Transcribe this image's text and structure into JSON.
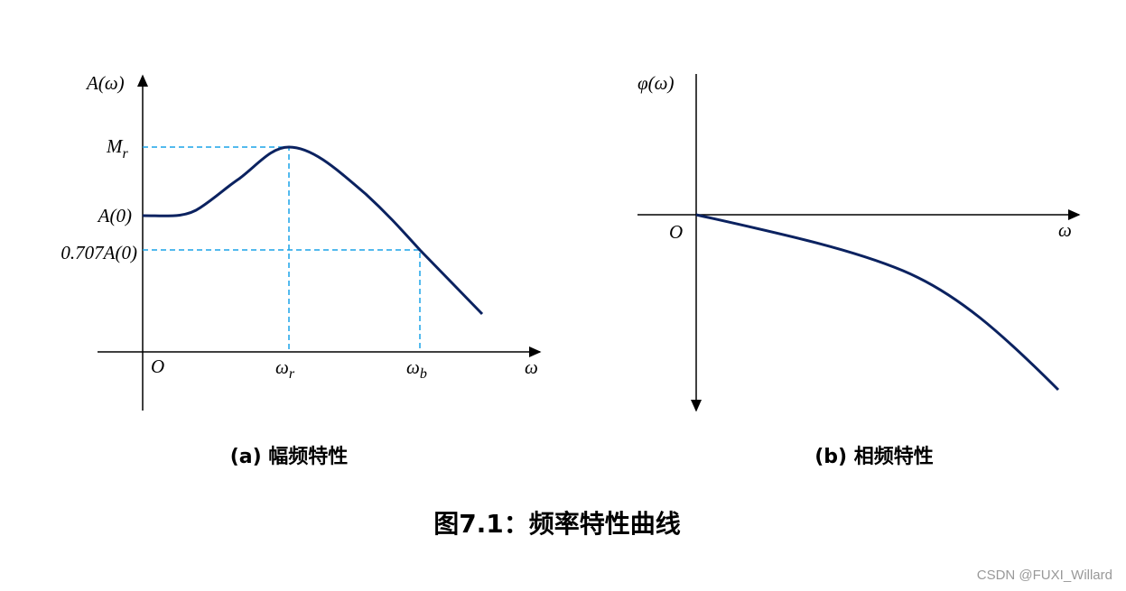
{
  "left": {
    "y_axis_label": "A(ω)",
    "x_axis_label": "ω",
    "origin": "O",
    "y_marks": [
      {
        "main": "M",
        "sub": "r"
      },
      {
        "main": "A(0)"
      },
      {
        "main": "0.707A(0)"
      }
    ],
    "x_marks": [
      {
        "main": "ω",
        "sub": "r"
      },
      {
        "main": "ω",
        "sub": "b"
      }
    ],
    "caption": "(a) 幅频特性"
  },
  "right": {
    "y_axis_label": "φ(ω)",
    "x_axis_label": "ω",
    "origin": "O",
    "caption": "(b) 相频特性"
  },
  "title": "图7.1：频率特性曲线",
  "watermark": "CSDN @FUXI_Willard"
}
